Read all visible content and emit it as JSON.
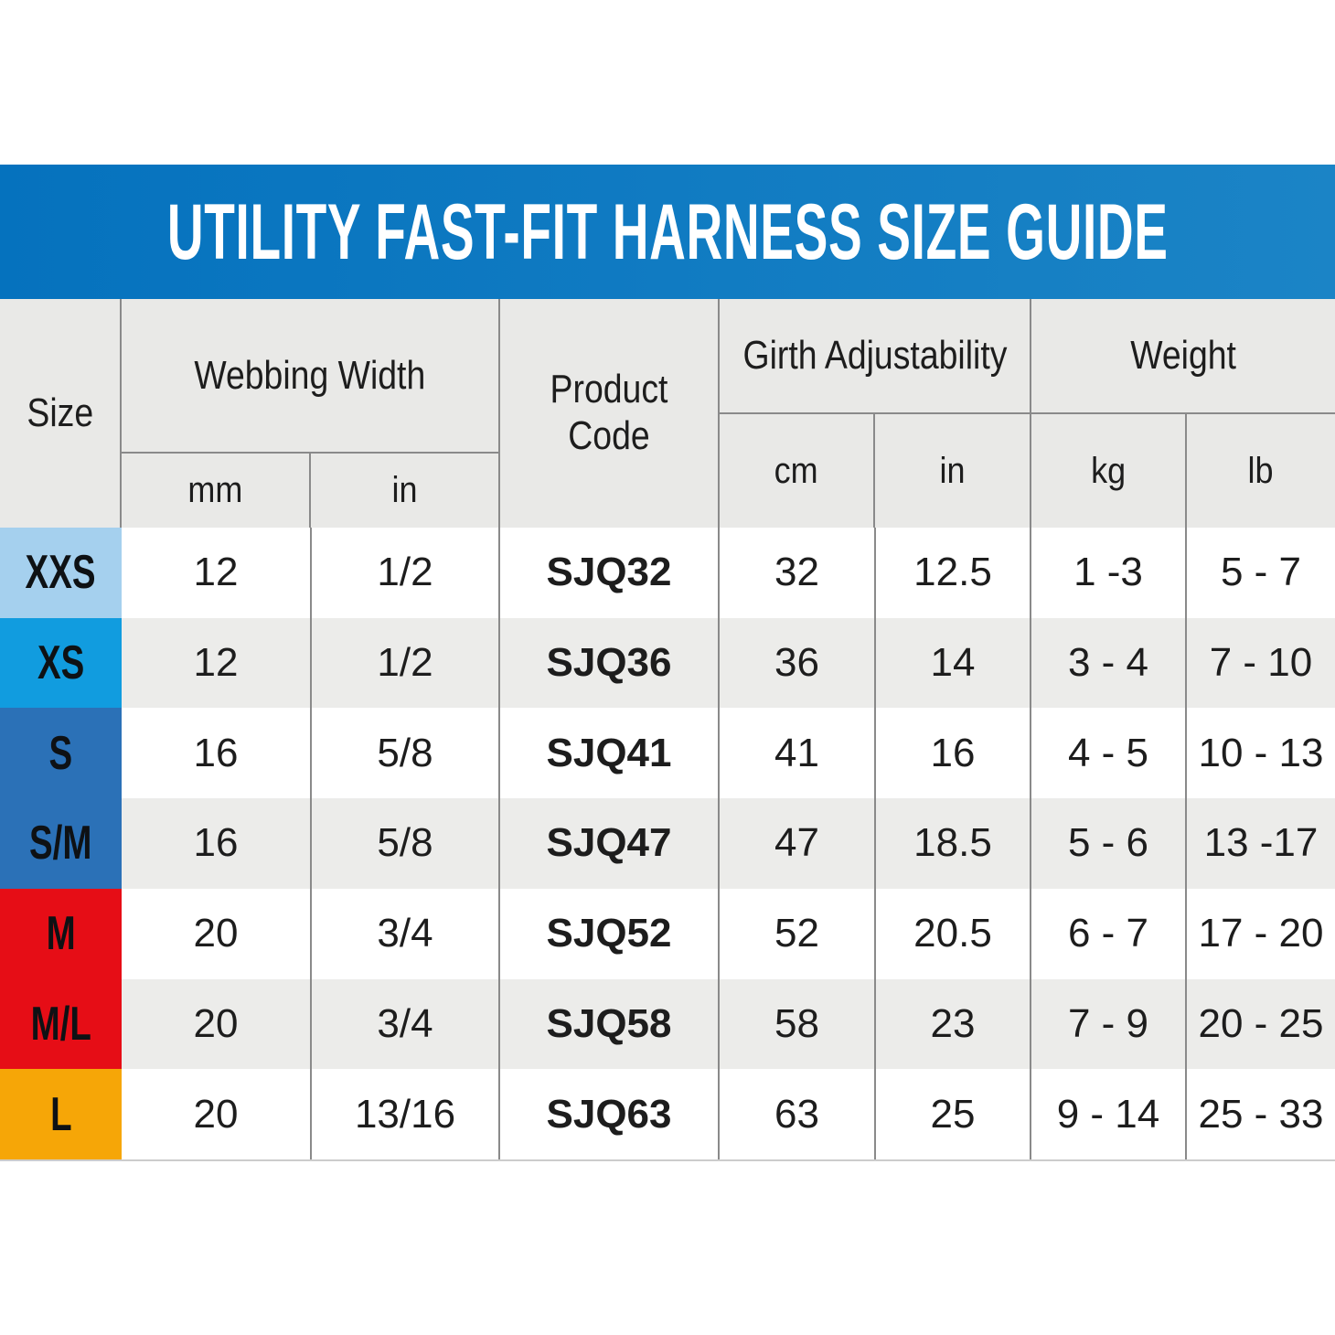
{
  "title": "UTILITY FAST-FIT HARNESS SIZE GUIDE",
  "colors": {
    "banner_left": "#0572be",
    "banner_right": "#1b84c6",
    "header_bg": "#e9e9e7",
    "row_alt_bg": "#ececea",
    "grid_line": "#8a8a8a",
    "text": "#1d1d1d",
    "size_xxs": "#a5d0ee",
    "size_xs": "#119cdf",
    "size_s_sm": "#2b71b7",
    "size_m_ml": "#e60d16",
    "size_l": "#f6a607"
  },
  "table": {
    "column_groups": {
      "size": "Size",
      "webbing_width": "Webbing Width",
      "product_code": "Product Code",
      "girth_adjustability": "Girth Adjustability",
      "weight": "Weight"
    },
    "units": {
      "webbing_mm": "mm",
      "webbing_in": "in",
      "girth_cm": "cm",
      "girth_in": "in",
      "weight_kg": "kg",
      "weight_lb": "lb"
    },
    "rows": [
      {
        "size": "XXS",
        "color": "#a5d0ee",
        "webbing_mm": "12",
        "webbing_in": "1/2",
        "product_code": "SJQ32",
        "girth_cm": "32",
        "girth_in": "12.5",
        "weight_kg": "1 -3",
        "weight_lb": "5 - 7"
      },
      {
        "size": "XS",
        "color": "#119cdf",
        "webbing_mm": "12",
        "webbing_in": "1/2",
        "product_code": "SJQ36",
        "girth_cm": "36",
        "girth_in": "14",
        "weight_kg": "3 - 4",
        "weight_lb": "7 - 10"
      },
      {
        "size": "S",
        "color": "#2b71b7",
        "webbing_mm": "16",
        "webbing_in": "5/8",
        "product_code": "SJQ41",
        "girth_cm": "41",
        "girth_in": "16",
        "weight_kg": "4 - 5",
        "weight_lb": "10 - 13"
      },
      {
        "size": "S/M",
        "color": "#2b71b7",
        "webbing_mm": "16",
        "webbing_in": "5/8",
        "product_code": "SJQ47",
        "girth_cm": "47",
        "girth_in": "18.5",
        "weight_kg": "5 - 6",
        "weight_lb": "13 -17"
      },
      {
        "size": "M",
        "color": "#e60d16",
        "webbing_mm": "20",
        "webbing_in": "3/4",
        "product_code": "SJQ52",
        "girth_cm": "52",
        "girth_in": "20.5",
        "weight_kg": "6 - 7",
        "weight_lb": "17 - 20"
      },
      {
        "size": "M/L",
        "color": "#e60d16",
        "webbing_mm": "20",
        "webbing_in": "3/4",
        "product_code": "SJQ58",
        "girth_cm": "58",
        "girth_in": "23",
        "weight_kg": "7 - 9",
        "weight_lb": "20 - 25"
      },
      {
        "size": "L",
        "color": "#f6a607",
        "webbing_mm": "20",
        "webbing_in": "13/16",
        "product_code": "SJQ63",
        "girth_cm": "63",
        "girth_in": "25",
        "weight_kg": "9 - 14",
        "weight_lb": "25 - 33"
      }
    ]
  }
}
